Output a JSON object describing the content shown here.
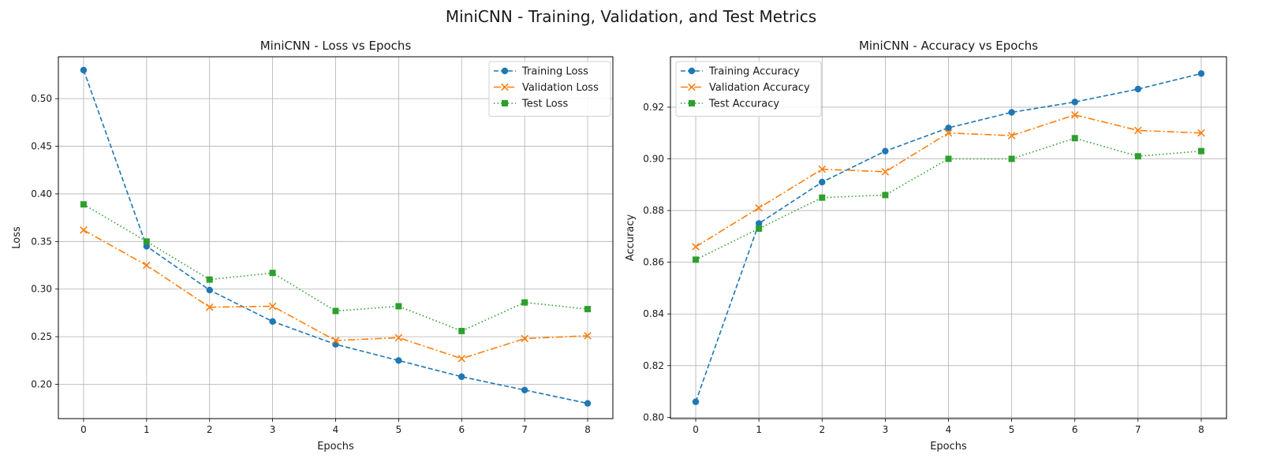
{
  "figure": {
    "title": "MiniCNN - Training, Validation, and Test Metrics"
  },
  "chart_data": [
    {
      "type": "line",
      "title": "MiniCNN - Loss vs Epochs",
      "xlabel": "Epochs",
      "ylabel": "Loss",
      "x": [
        0,
        1,
        2,
        3,
        4,
        5,
        6,
        7,
        8
      ],
      "xlim": [
        -0.4,
        8.4
      ],
      "ylim": [
        0.164,
        0.544
      ],
      "xticks": [
        0,
        1,
        2,
        3,
        4,
        5,
        6,
        7,
        8
      ],
      "yticks": [
        0.2,
        0.25,
        0.3,
        0.35,
        0.4,
        0.45,
        0.5
      ],
      "ytick_labels": [
        "0.20",
        "0.25",
        "0.30",
        "0.35",
        "0.40",
        "0.45",
        "0.50"
      ],
      "grid": true,
      "legend": "top-right",
      "series": [
        {
          "name": "Training Loss",
          "color": "#1f77b4",
          "marker": "circle",
          "linestyle": "dashed",
          "values": [
            0.53,
            0.345,
            0.299,
            0.266,
            0.242,
            0.225,
            0.208,
            0.194,
            0.18
          ]
        },
        {
          "name": "Validation Loss",
          "color": "#ff7f0e",
          "marker": "x",
          "linestyle": "dashdot",
          "values": [
            0.362,
            0.325,
            0.281,
            0.282,
            0.246,
            0.249,
            0.227,
            0.248,
            0.251
          ]
        },
        {
          "name": "Test Loss",
          "color": "#2ca02c",
          "marker": "square",
          "linestyle": "dotted",
          "values": [
            0.389,
            0.35,
            0.31,
            0.317,
            0.277,
            0.282,
            0.256,
            0.286,
            0.279
          ]
        }
      ]
    },
    {
      "type": "line",
      "title": "MiniCNN - Accuracy vs Epochs",
      "xlabel": "Epochs",
      "ylabel": "Accuracy",
      "x": [
        0,
        1,
        2,
        3,
        4,
        5,
        6,
        7,
        8
      ],
      "xlim": [
        -0.4,
        8.4
      ],
      "ylim": [
        0.7995,
        0.9395
      ],
      "xticks": [
        0,
        1,
        2,
        3,
        4,
        5,
        6,
        7,
        8
      ],
      "yticks": [
        0.8,
        0.82,
        0.84,
        0.86,
        0.88,
        0.9,
        0.92
      ],
      "ytick_labels": [
        "0.80",
        "0.82",
        "0.84",
        "0.86",
        "0.88",
        "0.90",
        "0.92"
      ],
      "grid": true,
      "legend": "top-left",
      "series": [
        {
          "name": "Training Accuracy",
          "color": "#1f77b4",
          "marker": "circle",
          "linestyle": "dashed",
          "values": [
            0.806,
            0.875,
            0.891,
            0.903,
            0.912,
            0.918,
            0.922,
            0.927,
            0.933
          ]
        },
        {
          "name": "Validation Accuracy",
          "color": "#ff7f0e",
          "marker": "x",
          "linestyle": "dashdot",
          "values": [
            0.866,
            0.881,
            0.896,
            0.895,
            0.91,
            0.909,
            0.917,
            0.911,
            0.91
          ]
        },
        {
          "name": "Test Accuracy",
          "color": "#2ca02c",
          "marker": "square",
          "linestyle": "dotted",
          "values": [
            0.861,
            0.873,
            0.885,
            0.886,
            0.9,
            0.9,
            0.908,
            0.901,
            0.903
          ]
        }
      ]
    }
  ]
}
